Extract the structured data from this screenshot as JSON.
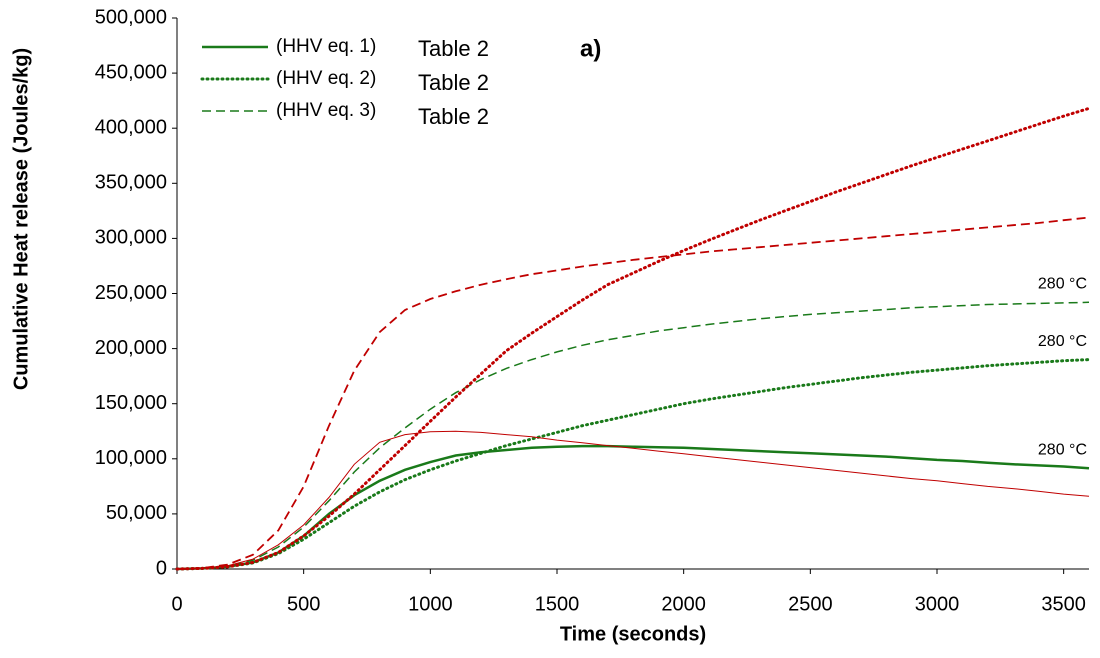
{
  "chart_data": {
    "type": "line",
    "x_label": "Time (seconds)",
    "y_label": "Cumulative Heat release (Joules/kg)",
    "annotation": "a)",
    "x": [
      0,
      100,
      200,
      300,
      400,
      500,
      600,
      700,
      800,
      900,
      1000,
      1100,
      1200,
      1300,
      1400,
      1500,
      1600,
      1700,
      1800,
      1900,
      2000,
      2100,
      2200,
      2300,
      2400,
      2500,
      2600,
      2700,
      2800,
      2900,
      3000,
      3100,
      3200,
      3300,
      3400,
      3500,
      3600
    ],
    "xlim": [
      0,
      3600
    ],
    "xticks": [
      0,
      500,
      1000,
      1500,
      2000,
      2500,
      3000,
      3500
    ],
    "ylim": [
      0,
      500000
    ],
    "yticks": [
      0,
      {
        "value": 50000,
        "label": "50,000"
      },
      {
        "value": 100000,
        "label": "100,000"
      },
      {
        "value": 150000,
        "label": "150,000"
      },
      {
        "value": 200000,
        "label": "200,000"
      },
      {
        "value": 250000,
        "label": "250,000"
      },
      {
        "value": 300000,
        "label": "300,000"
      },
      {
        "value": 350000,
        "label": "350,000"
      },
      {
        "value": 400000,
        "label": "400,000"
      },
      {
        "value": 450000,
        "label": "450,000"
      },
      {
        "value": 500000,
        "label": "500,000"
      }
    ],
    "legend": "top-left",
    "series": [
      {
        "name": "(HHV eq. 1)",
        "legend_note": "Table 2",
        "end_label": "280 °C",
        "color": "#1a7a1a",
        "dash": "solid",
        "width": 2.5,
        "values": [
          0,
          500,
          2000,
          6000,
          15000,
          30000,
          50000,
          67000,
          80000,
          90000,
          97000,
          103000,
          106000,
          108000,
          110000,
          111000,
          111500,
          111500,
          111000,
          110500,
          110000,
          109000,
          108000,
          107000,
          106000,
          105000,
          104000,
          103000,
          102000,
          100500,
          99000,
          98000,
          96500,
          95000,
          94000,
          93000,
          91500
        ]
      },
      {
        "name": "(HHV eq. 2)",
        "legend_note": "Table 2",
        "end_label": "280 °C",
        "color": "#1a7a1a",
        "dash": "dotted",
        "width": 3,
        "values": [
          0,
          500,
          2000,
          5500,
          14000,
          27000,
          42000,
          57000,
          70000,
          81000,
          90000,
          98000,
          105000,
          112000,
          118000,
          124000,
          130000,
          135000,
          140000,
          145000,
          150000,
          154000,
          157500,
          161000,
          164500,
          167500,
          170500,
          173500,
          176000,
          178500,
          180500,
          182500,
          184500,
          186000,
          187500,
          189000,
          190000
        ]
      },
      {
        "name": "(HHV eq. 3)",
        "legend_note": "Table 2",
        "end_label": "280 °C",
        "color": "#1a7a1a",
        "dash": "dashed",
        "width": 1.5,
        "values": [
          0,
          600,
          2500,
          8000,
          20000,
          38000,
          62000,
          88000,
          110000,
          128000,
          145000,
          160000,
          172000,
          182000,
          190000,
          197000,
          203000,
          208000,
          212000,
          216000,
          219000,
          222000,
          224500,
          227000,
          229000,
          231000,
          232500,
          234000,
          235500,
          237000,
          238000,
          239000,
          240000,
          240500,
          241000,
          241500,
          242000
        ]
      },
      {
        "color": "#c00000",
        "dash": "solid",
        "width": 1,
        "values": [
          0,
          700,
          3000,
          9000,
          22000,
          40000,
          65000,
          95000,
          115000,
          122000,
          124500,
          125000,
          124000,
          122000,
          120000,
          117000,
          114500,
          112000,
          109500,
          107000,
          104500,
          102000,
          99500,
          97000,
          94500,
          92000,
          89500,
          87000,
          84500,
          82000,
          80000,
          77500,
          75000,
          73000,
          70500,
          68000,
          66000
        ]
      },
      {
        "color": "#c00000",
        "dash": "dotted",
        "width": 3,
        "values": [
          0,
          500,
          2000,
          6000,
          15000,
          30000,
          48000,
          68000,
          90000,
          112000,
          134000,
          156000,
          177000,
          198000,
          214000,
          229000,
          244000,
          258000,
          268500,
          279000,
          289000,
          298500,
          307500,
          316500,
          325000,
          333500,
          342000,
          350000,
          358000,
          366000,
          373500,
          381000,
          388500,
          396000,
          403500,
          411000,
          418000
        ]
      },
      {
        "color": "#c00000",
        "dash": "dashed",
        "width": 1.8,
        "values": [
          0,
          800,
          4000,
          13000,
          35000,
          75000,
          130000,
          180000,
          215000,
          235000,
          245000,
          252000,
          258000,
          263000,
          267500,
          271000,
          274500,
          277500,
          280500,
          283000,
          285500,
          288000,
          290000,
          292000,
          294000,
          296000,
          298000,
          300000,
          302000,
          304000,
          306000,
          308000,
          310000,
          312000,
          314000,
          316500,
          319000
        ]
      }
    ]
  }
}
